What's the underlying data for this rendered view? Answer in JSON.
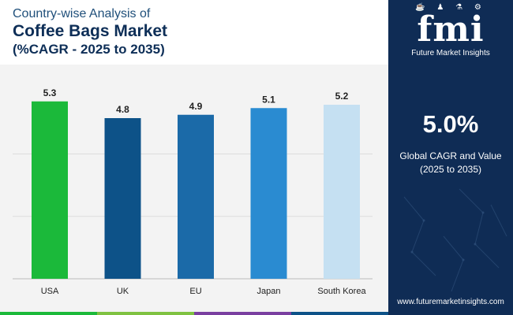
{
  "header": {
    "subtitle_top": "Country-wise Analysis of",
    "title": "Coffee Bags Market",
    "subtitle_bottom": "(%CAGR - 2025 to 2035)"
  },
  "chart_data": {
    "type": "bar",
    "categories": [
      "USA",
      "UK",
      "EU",
      "Japan",
      "South Korea"
    ],
    "values": [
      5.3,
      4.8,
      4.9,
      5.1,
      5.2
    ],
    "colors": [
      "#1bb93a",
      "#0d5288",
      "#1b6aa8",
      "#2a8bd1",
      "#c5e0f2"
    ],
    "ylim": [
      0,
      5.6
    ],
    "grid": true,
    "legend": "none",
    "xlabel": "",
    "ylabel": ""
  },
  "sidebar": {
    "logo_letters": "fmi",
    "logo_icons": "☕ ♟ ⚗ ⚙",
    "company_name": "Future Market Insights",
    "headline_value": "5.0%",
    "headline_label_line1": "Global CAGR and Value",
    "headline_label_line2": "(2025 to 2035)",
    "website": "www.futuremarketinsights.com"
  },
  "colors": {
    "panel_bg": "#0f2c55",
    "title": "#0d2e57",
    "chart_bg": "#f3f3f3",
    "strip": [
      "#1bb93a",
      "#7fc241",
      "#7a3fa0",
      "#0d5288"
    ]
  }
}
